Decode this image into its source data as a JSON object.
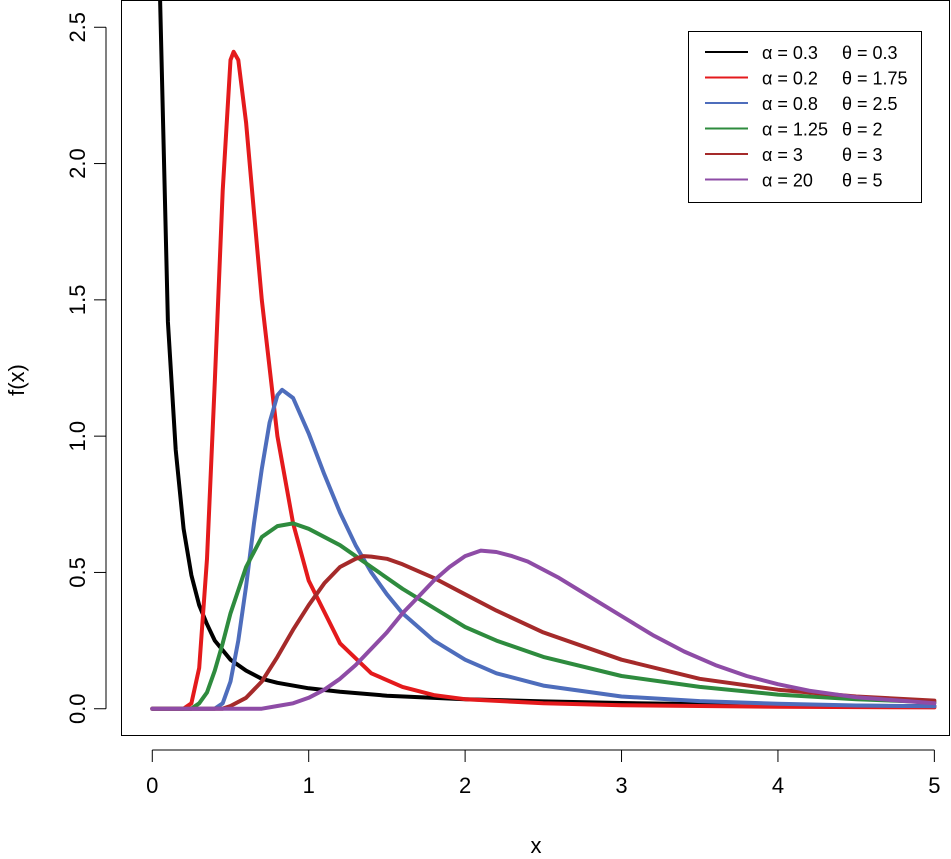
{
  "chart_data": {
    "type": "line",
    "xlabel": "x",
    "ylabel": "f(x)",
    "xlim": [
      -0.2,
      5.1
    ],
    "ylim": [
      -0.1,
      2.6
    ],
    "x_ticks": [
      0,
      1,
      2,
      3,
      4,
      5
    ],
    "x_tick_labels": [
      "0",
      "1",
      "2",
      "3",
      "4",
      "5"
    ],
    "y_ticks": [
      0.0,
      0.5,
      1.0,
      1.5,
      2.0,
      2.5
    ],
    "y_tick_labels": [
      "0.0",
      "0.5",
      "1.0",
      "1.5",
      "2.0",
      "2.5"
    ],
    "grid": false,
    "legend_position": "top-right",
    "series": [
      {
        "name": "α = 0.3  θ = 0.3",
        "alpha_text": "α = 0.3",
        "theta_text": "θ = 0.3",
        "color": "#000000",
        "points": [
          [
            0.05,
            2.6
          ],
          [
            0.1,
            1.42
          ],
          [
            0.15,
            0.95
          ],
          [
            0.2,
            0.66
          ],
          [
            0.25,
            0.49
          ],
          [
            0.3,
            0.38
          ],
          [
            0.35,
            0.31
          ],
          [
            0.4,
            0.25
          ],
          [
            0.5,
            0.18
          ],
          [
            0.6,
            0.14
          ],
          [
            0.7,
            0.11
          ],
          [
            0.8,
            0.095
          ],
          [
            1.0,
            0.075
          ],
          [
            1.2,
            0.062
          ],
          [
            1.5,
            0.048
          ],
          [
            2.0,
            0.035
          ],
          [
            2.5,
            0.027
          ],
          [
            3.0,
            0.021
          ],
          [
            3.5,
            0.017
          ],
          [
            4.0,
            0.014
          ],
          [
            4.5,
            0.011
          ],
          [
            5.0,
            0.009
          ]
        ]
      },
      {
        "name": "α = 0.2  θ = 1.75",
        "alpha_text": "α = 0.2",
        "theta_text": "θ = 1.75",
        "color": "#e41a1c",
        "points": [
          [
            0.0,
            0.0
          ],
          [
            0.2,
            0.0
          ],
          [
            0.25,
            0.02
          ],
          [
            0.3,
            0.15
          ],
          [
            0.35,
            0.55
          ],
          [
            0.4,
            1.2
          ],
          [
            0.45,
            1.9
          ],
          [
            0.5,
            2.38
          ],
          [
            0.52,
            2.41
          ],
          [
            0.55,
            2.38
          ],
          [
            0.6,
            2.15
          ],
          [
            0.65,
            1.82
          ],
          [
            0.7,
            1.5
          ],
          [
            0.8,
            1.0
          ],
          [
            0.9,
            0.68
          ],
          [
            1.0,
            0.47
          ],
          [
            1.2,
            0.24
          ],
          [
            1.4,
            0.13
          ],
          [
            1.6,
            0.08
          ],
          [
            1.8,
            0.05
          ],
          [
            2.0,
            0.035
          ],
          [
            2.5,
            0.02
          ],
          [
            3.0,
            0.013
          ],
          [
            4.0,
            0.007
          ],
          [
            5.0,
            0.005
          ]
        ]
      },
      {
        "name": "α = 0.8  θ = 2.5",
        "alpha_text": "α = 0.8",
        "theta_text": "θ = 2.5",
        "color": "#4e6dbc",
        "points": [
          [
            0.0,
            0.0
          ],
          [
            0.4,
            0.0
          ],
          [
            0.45,
            0.02
          ],
          [
            0.5,
            0.1
          ],
          [
            0.55,
            0.25
          ],
          [
            0.6,
            0.45
          ],
          [
            0.65,
            0.68
          ],
          [
            0.7,
            0.88
          ],
          [
            0.75,
            1.05
          ],
          [
            0.8,
            1.15
          ],
          [
            0.83,
            1.17
          ],
          [
            0.9,
            1.14
          ],
          [
            1.0,
            1.01
          ],
          [
            1.1,
            0.86
          ],
          [
            1.2,
            0.72
          ],
          [
            1.3,
            0.6
          ],
          [
            1.4,
            0.5
          ],
          [
            1.5,
            0.42
          ],
          [
            1.6,
            0.35
          ],
          [
            1.8,
            0.25
          ],
          [
            2.0,
            0.18
          ],
          [
            2.2,
            0.13
          ],
          [
            2.5,
            0.085
          ],
          [
            3.0,
            0.045
          ],
          [
            3.5,
            0.028
          ],
          [
            4.0,
            0.018
          ],
          [
            4.5,
            0.012
          ],
          [
            5.0,
            0.009
          ]
        ]
      },
      {
        "name": "α = 1.25 θ = 2",
        "alpha_text": "α = 1.25",
        "theta_text": "θ = 2",
        "color": "#2e8b3e",
        "points": [
          [
            0.0,
            0.0
          ],
          [
            0.25,
            0.0
          ],
          [
            0.3,
            0.02
          ],
          [
            0.35,
            0.06
          ],
          [
            0.4,
            0.14
          ],
          [
            0.45,
            0.24
          ],
          [
            0.5,
            0.35
          ],
          [
            0.6,
            0.52
          ],
          [
            0.7,
            0.63
          ],
          [
            0.8,
            0.67
          ],
          [
            0.9,
            0.68
          ],
          [
            1.0,
            0.66
          ],
          [
            1.2,
            0.6
          ],
          [
            1.4,
            0.52
          ],
          [
            1.6,
            0.44
          ],
          [
            1.8,
            0.37
          ],
          [
            2.0,
            0.3
          ],
          [
            2.2,
            0.25
          ],
          [
            2.5,
            0.19
          ],
          [
            3.0,
            0.12
          ],
          [
            3.5,
            0.08
          ],
          [
            4.0,
            0.052
          ],
          [
            4.5,
            0.035
          ],
          [
            5.0,
            0.024
          ]
        ]
      },
      {
        "name": "α = 3     θ = 3",
        "alpha_text": "α = 3",
        "theta_text": "θ = 3",
        "color": "#a52a2a",
        "points": [
          [
            0.0,
            0.0
          ],
          [
            0.45,
            0.0
          ],
          [
            0.5,
            0.01
          ],
          [
            0.6,
            0.04
          ],
          [
            0.7,
            0.1
          ],
          [
            0.8,
            0.19
          ],
          [
            0.9,
            0.29
          ],
          [
            1.0,
            0.38
          ],
          [
            1.1,
            0.46
          ],
          [
            1.2,
            0.52
          ],
          [
            1.3,
            0.55
          ],
          [
            1.35,
            0.56
          ],
          [
            1.4,
            0.558
          ],
          [
            1.5,
            0.55
          ],
          [
            1.6,
            0.53
          ],
          [
            1.8,
            0.48
          ],
          [
            2.0,
            0.42
          ],
          [
            2.2,
            0.36
          ],
          [
            2.5,
            0.28
          ],
          [
            3.0,
            0.18
          ],
          [
            3.5,
            0.11
          ],
          [
            4.0,
            0.07
          ],
          [
            4.5,
            0.045
          ],
          [
            5.0,
            0.03
          ]
        ]
      },
      {
        "name": "α = 20    θ = 5",
        "alpha_text": "α = 20",
        "theta_text": "θ = 5",
        "color": "#8e4ca6",
        "points": [
          [
            0.0,
            0.0
          ],
          [
            0.7,
            0.0
          ],
          [
            0.8,
            0.01
          ],
          [
            0.9,
            0.02
          ],
          [
            1.0,
            0.04
          ],
          [
            1.1,
            0.07
          ],
          [
            1.2,
            0.11
          ],
          [
            1.3,
            0.16
          ],
          [
            1.4,
            0.22
          ],
          [
            1.5,
            0.28
          ],
          [
            1.6,
            0.35
          ],
          [
            1.7,
            0.41
          ],
          [
            1.8,
            0.47
          ],
          [
            1.9,
            0.52
          ],
          [
            2.0,
            0.56
          ],
          [
            2.1,
            0.58
          ],
          [
            2.2,
            0.575
          ],
          [
            2.3,
            0.56
          ],
          [
            2.4,
            0.54
          ],
          [
            2.6,
            0.48
          ],
          [
            2.8,
            0.41
          ],
          [
            3.0,
            0.34
          ],
          [
            3.2,
            0.27
          ],
          [
            3.4,
            0.21
          ],
          [
            3.6,
            0.16
          ],
          [
            3.8,
            0.12
          ],
          [
            4.0,
            0.09
          ],
          [
            4.2,
            0.066
          ],
          [
            4.5,
            0.042
          ],
          [
            5.0,
            0.02
          ]
        ]
      }
    ]
  }
}
